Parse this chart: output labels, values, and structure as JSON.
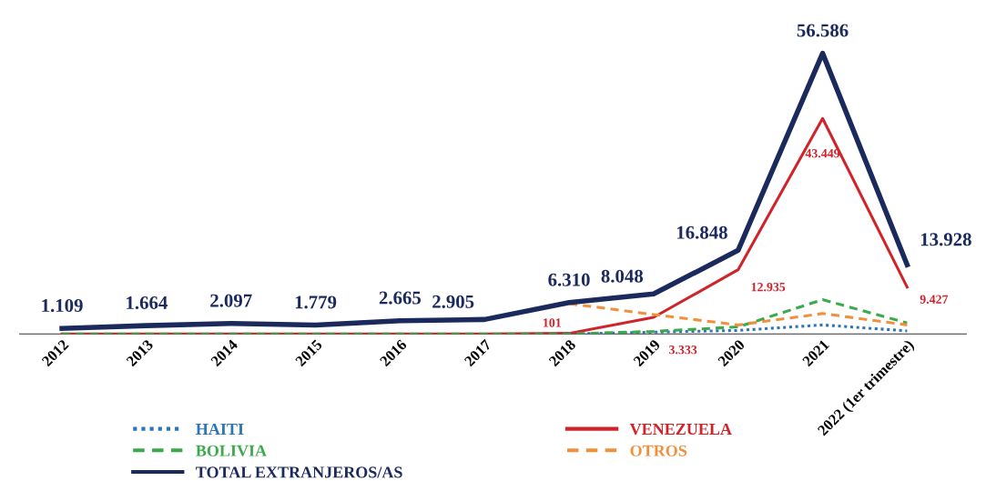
{
  "chart_data": {
    "type": "line",
    "categories": [
      "2012",
      "2013",
      "2014",
      "2015",
      "2016",
      "2017",
      "2018",
      "2019",
      "2020",
      "2021",
      "2022 (1er trimestre)"
    ],
    "series": [
      {
        "name": "HAITI",
        "color": "#2e75b6",
        "line_style": "dotted",
        "values": [
          null,
          null,
          null,
          null,
          null,
          null,
          0,
          350,
          700,
          1800,
          600
        ]
      },
      {
        "name": "VENEZUELA",
        "color": "#d0242b",
        "line_style": "solid",
        "values": [
          0,
          0,
          0,
          0,
          0,
          0,
          101,
          3333,
          12935,
          43449,
          9427
        ],
        "value_labels": [
          null,
          null,
          null,
          null,
          null,
          null,
          "101",
          "3.333",
          "12.935",
          "43.449",
          "9.427"
        ]
      },
      {
        "name": "BOLIVIA",
        "color": "#3aaa4a",
        "line_style": "dashed",
        "values": [
          0,
          0,
          0,
          0,
          0,
          0,
          0,
          500,
          1400,
          6900,
          2200
        ]
      },
      {
        "name": "OTROS",
        "color": "#f0903c",
        "line_style": "dashed",
        "values": [
          null,
          null,
          null,
          null,
          null,
          null,
          6100,
          3900,
          1800,
          4100,
          1800
        ]
      },
      {
        "name": "TOTAL EXTRANJEROS/AS",
        "color": "#1b2a5c",
        "line_style": "solid",
        "values": [
          1109,
          1664,
          2097,
          1779,
          2665,
          2905,
          6310,
          8048,
          16848,
          56586,
          13928
        ],
        "value_labels": [
          "1.109",
          "1.664",
          "2.097",
          "1.779",
          "2.665",
          "2.905",
          "6.310",
          "8.048",
          "16.848",
          "56.586",
          "13.928"
        ]
      }
    ],
    "grid": false,
    "legend": "bottom",
    "tick_labels": "x",
    "marker": "none"
  }
}
